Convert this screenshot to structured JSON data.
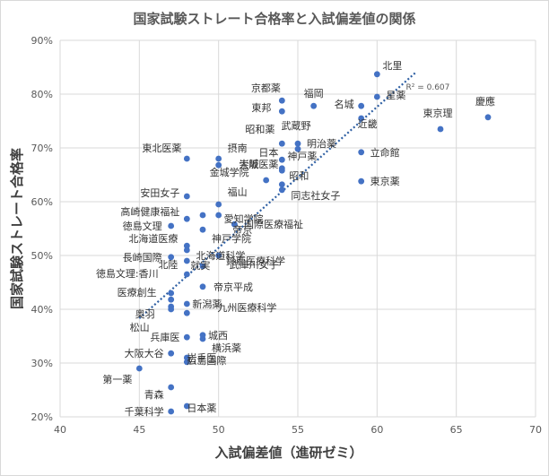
{
  "chart_data": {
    "type": "scatter",
    "title": "国家試験ストレート合格率と入試偏差値の関係",
    "xlabel": "入試偏差値（進研ゼミ）",
    "ylabel": "国家試験ストレート合格率",
    "xlim": [
      40,
      70
    ],
    "ylim": [
      0.2,
      0.9
    ],
    "x_ticks": [
      "40",
      "45",
      "50",
      "55",
      "60",
      "65",
      "70"
    ],
    "y_ticks": [
      "20%",
      "30%",
      "40%",
      "50%",
      "60%",
      "70%",
      "80%",
      "90%"
    ],
    "grid": true,
    "trendline": {
      "type": "linear",
      "r2_label": "R² = 0.607",
      "color": "#2e5fa3",
      "x_start": 45,
      "x_end": 62.5
    },
    "point_color": "#4472c4",
    "points": [
      {
        "label": "北里",
        "x": 60,
        "y": 0.837
      },
      {
        "label": "京都薬",
        "x": 54,
        "y": 0.788
      },
      {
        "label": "福岡",
        "x": 56,
        "y": 0.778
      },
      {
        "label": "星薬",
        "x": 60,
        "y": 0.795
      },
      {
        "label": "慶應",
        "x": 67,
        "y": 0.757
      },
      {
        "label": "東邦",
        "x": 54,
        "y": 0.768
      },
      {
        "label": "名城",
        "x": 59,
        "y": 0.778
      },
      {
        "label": "近畿",
        "x": 59,
        "y": 0.755
      },
      {
        "label": "東京理",
        "x": 64,
        "y": 0.735
      },
      {
        "label": "昭和薬",
        "x": 54,
        "y": 0.708
      },
      {
        "label": "武蔵野",
        "x": 55,
        "y": 0.708
      },
      {
        "label": "明治薬",
        "x": 55,
        "y": 0.698
      },
      {
        "label": "東北医薬",
        "x": 48,
        "y": 0.68
      },
      {
        "label": "摂南",
        "x": 50,
        "y": 0.68
      },
      {
        "label": "日本",
        "x": 54,
        "y": 0.678
      },
      {
        "label": "立命館",
        "x": 59,
        "y": 0.692
      },
      {
        "label": "金城学院",
        "x": 50,
        "y": 0.668
      },
      {
        "label": "大阪医薬",
        "x": 54,
        "y": 0.658
      },
      {
        "label": "神戸薬",
        "x": 54,
        "y": 0.662
      },
      {
        "label": "崇城",
        "x": 53,
        "y": 0.64
      },
      {
        "label": "昭和",
        "x": 54,
        "y": 0.622
      },
      {
        "label": "東京薬",
        "x": 59,
        "y": 0.638
      },
      {
        "label": "同志社女子",
        "x": 54,
        "y": 0.632
      },
      {
        "label": "安田女子",
        "x": 48,
        "y": 0.61
      },
      {
        "label": "福山",
        "x": 50,
        "y": 0.595
      },
      {
        "label": "愛知学院",
        "x": 50,
        "y": 0.575
      },
      {
        "label": "高崎健康福祉",
        "x": 48,
        "y": 0.568
      },
      {
        "label": "帝京",
        "x": 51,
        "y": 0.558
      },
      {
        "label": "国際医療福祉",
        "x": 49,
        "y": 0.575
      },
      {
        "label": "徳島文理",
        "x": 47,
        "y": 0.555
      },
      {
        "label": "神戸学院",
        "x": 49,
        "y": 0.548
      },
      {
        "label": "北海道医療",
        "x": 48,
        "y": 0.518
      },
      {
        "label": "北海道科学",
        "x": 48,
        "y": 0.51
      },
      {
        "label": "長崎国際",
        "x": 47,
        "y": 0.497
      },
      {
        "label": "北陸",
        "x": 48,
        "y": 0.49
      },
      {
        "label": "武庫川女子",
        "x": 50,
        "y": 0.5
      },
      {
        "label": "就実",
        "x": 48,
        "y": 0.465
      },
      {
        "label": "鈴鹿医療科学",
        "x": 49,
        "y": 0.48
      },
      {
        "label": "徳島文理:香川",
        "x": 47,
        "y": 0.43
      },
      {
        "label": "帝京平成",
        "x": 49,
        "y": 0.442
      },
      {
        "label": "医療創生",
        "x": 47,
        "y": 0.418
      },
      {
        "label": "新潟薬",
        "x": 48,
        "y": 0.41
      },
      {
        "label": "奥羽",
        "x": 47,
        "y": 0.405
      },
      {
        "label": "九州医療科学",
        "x": 48,
        "y": 0.393
      },
      {
        "label": "松山",
        "x": 47,
        "y": 0.4
      },
      {
        "label": "城西",
        "x": 49,
        "y": 0.352
      },
      {
        "label": "兵庫医",
        "x": 48,
        "y": 0.348
      },
      {
        "label": "横浜薬",
        "x": 49,
        "y": 0.345
      },
      {
        "label": "大阪大谷",
        "x": 47,
        "y": 0.318
      },
      {
        "label": "岩手医",
        "x": 48,
        "y": 0.31
      },
      {
        "label": "第一薬",
        "x": 45,
        "y": 0.29
      },
      {
        "label": "広島国際",
        "x": 48,
        "y": 0.302
      },
      {
        "label": "青森",
        "x": 47,
        "y": 0.255
      },
      {
        "label": "千葉科学",
        "x": 47,
        "y": 0.21
      },
      {
        "label": "日本薬",
        "x": 48,
        "y": 0.22
      }
    ]
  }
}
